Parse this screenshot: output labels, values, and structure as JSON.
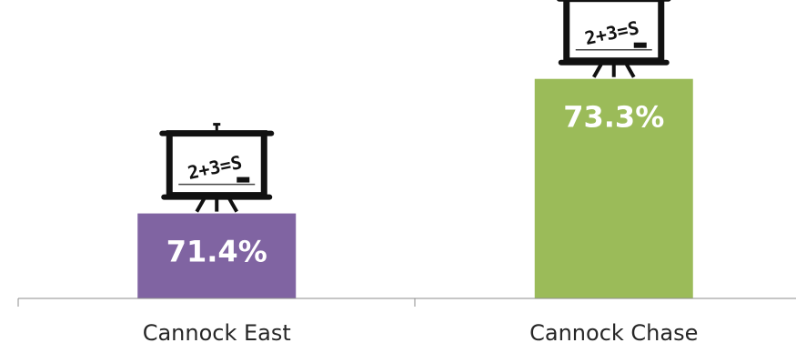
{
  "chart_data": {
    "type": "bar",
    "title": "",
    "xlabel": "",
    "ylabel": "",
    "categories": [
      "Cannock East",
      "Cannock Chase"
    ],
    "values": [
      71.4,
      73.3
    ],
    "value_labels": [
      "71.4%",
      "73.3%"
    ],
    "colors": [
      "#8064a2",
      "#9bbb59"
    ],
    "ylim": [
      70.2,
      73.9
    ],
    "grid": false,
    "legend": "none",
    "icons": [
      "easel-whiteboard-icon",
      "easel-whiteboard-icon"
    ],
    "icon_texts": [
      "2+3=S",
      "2+3=S"
    ]
  }
}
